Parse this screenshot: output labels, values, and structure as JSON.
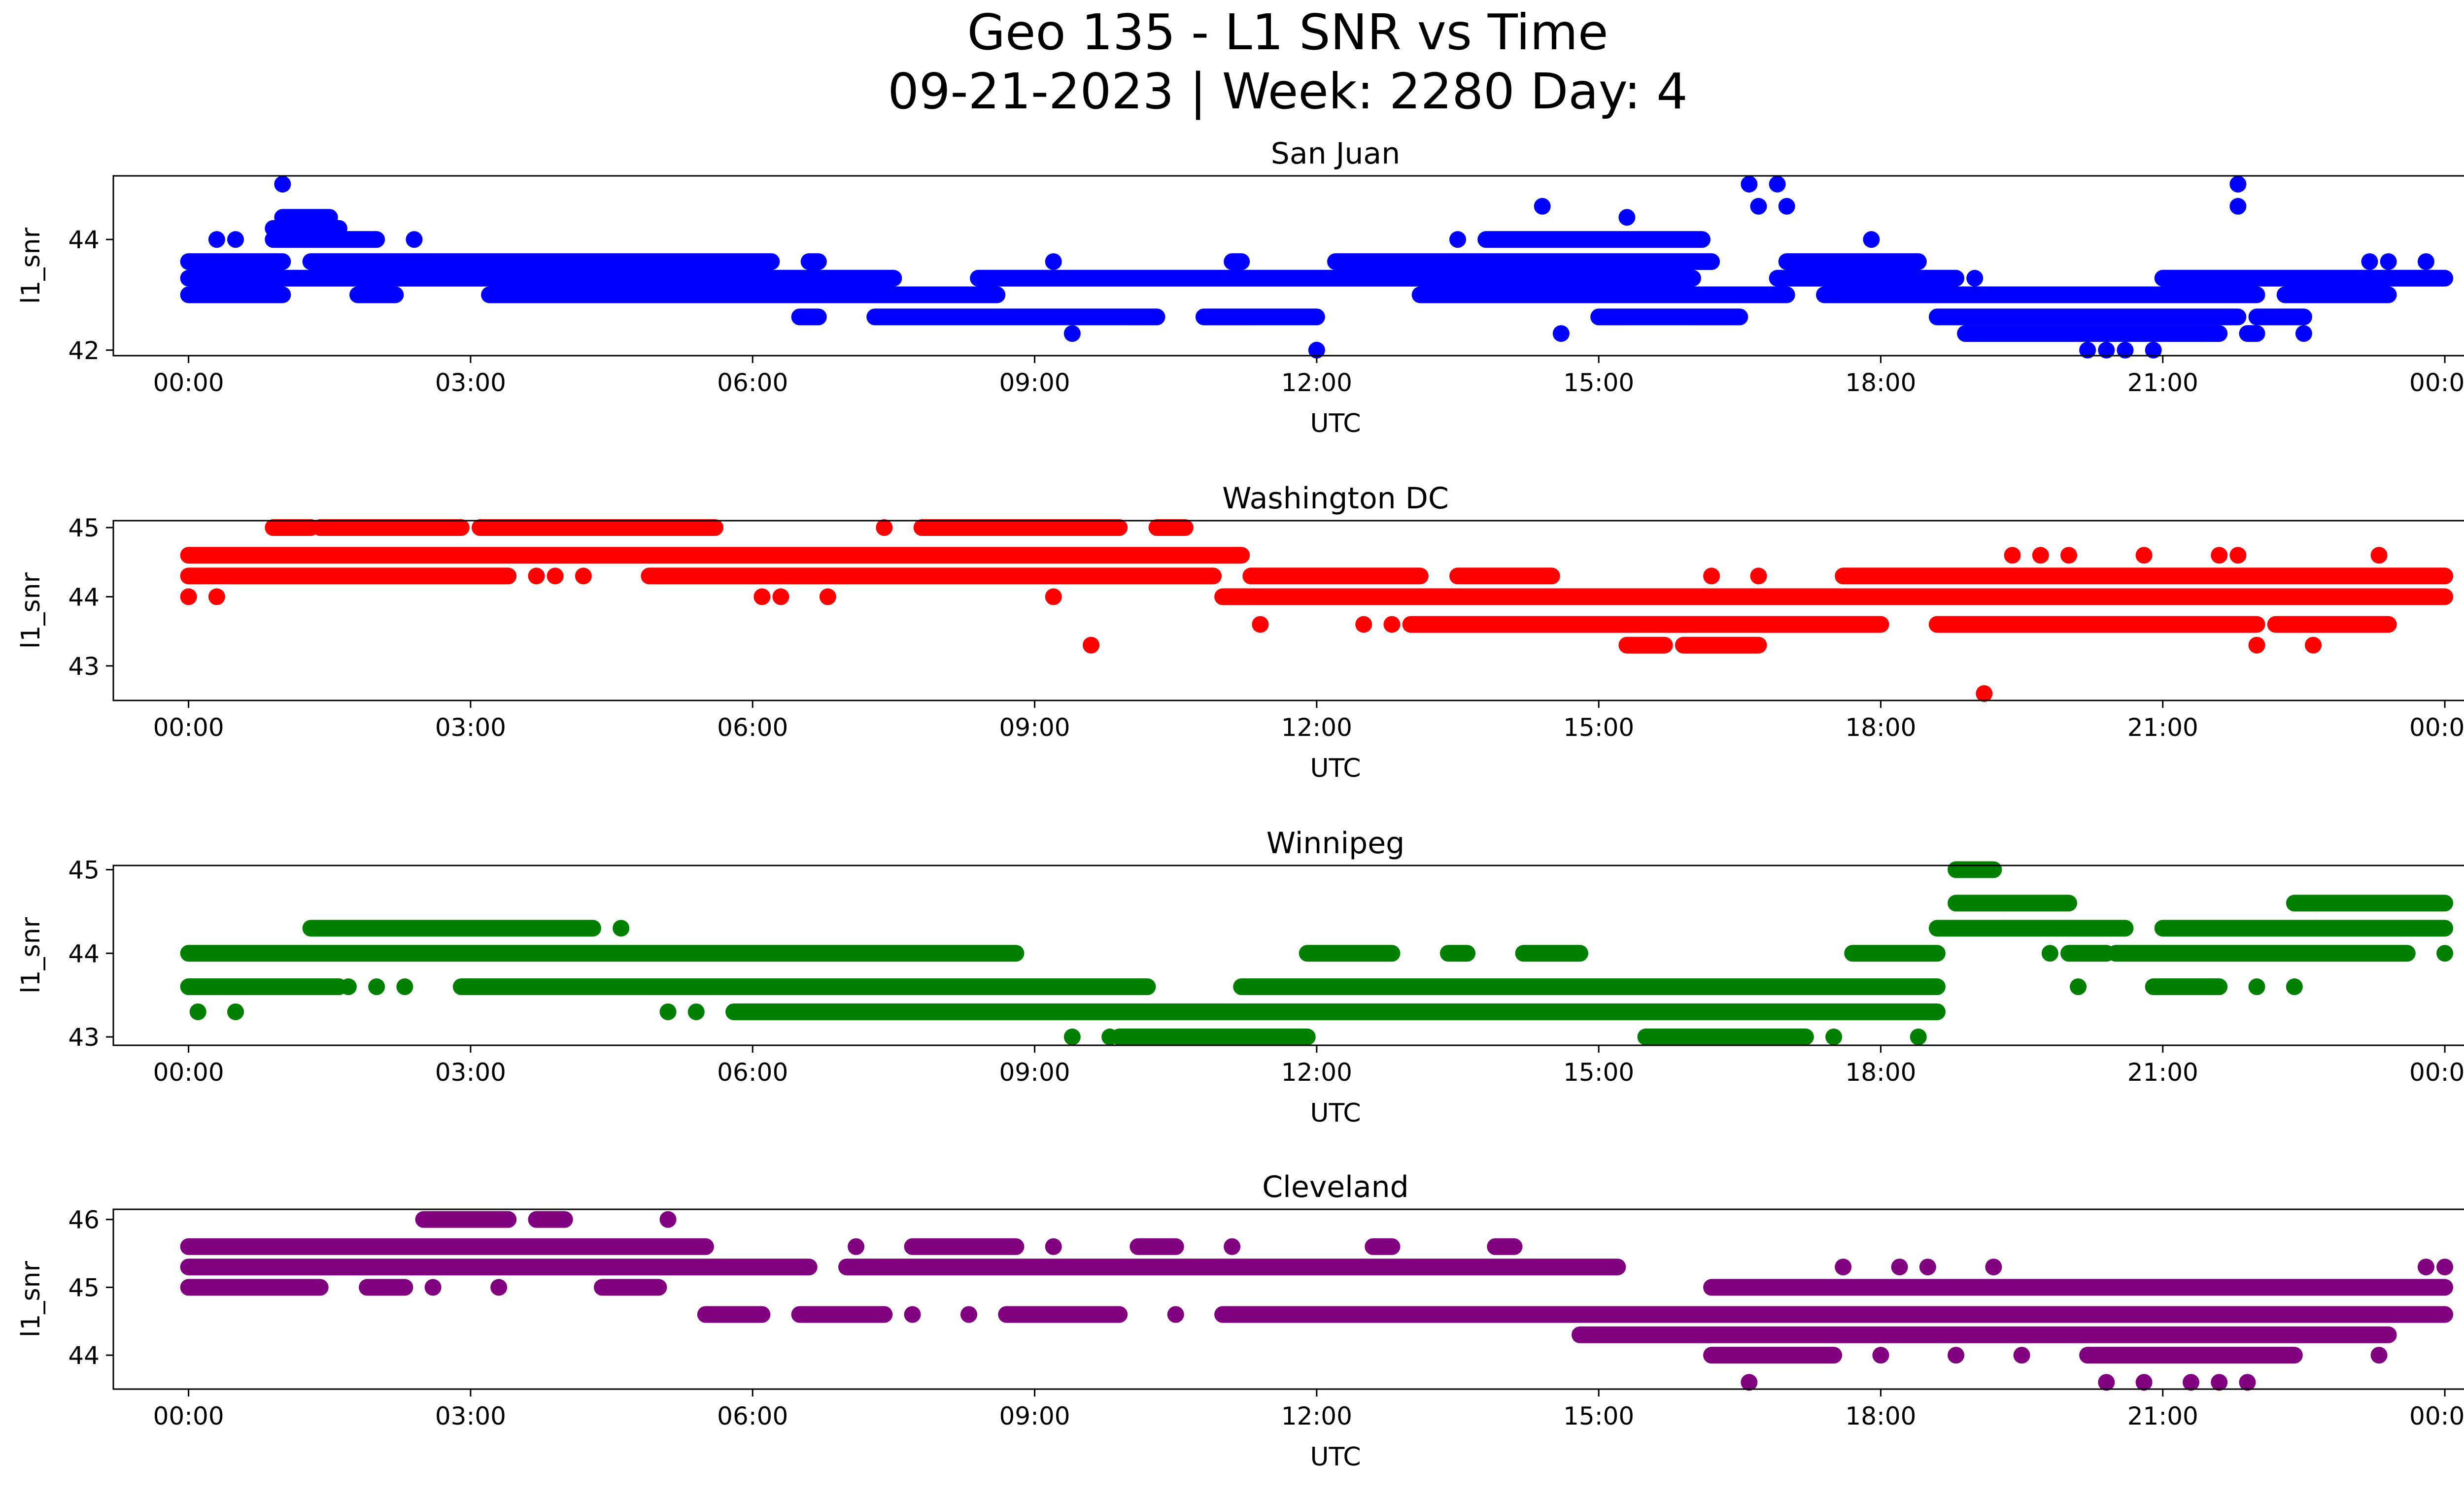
{
  "title_line1": "Geo 135 - L1 SNR vs Time",
  "title_line2": "09-21-2023 | Week: 2280 Day: 4",
  "chart_data": [
    {
      "type": "scatter",
      "title": "San Juan",
      "color": "#0000ff",
      "xlabel": "UTC",
      "ylabel": "l1_snr",
      "xlim": [
        -0.8,
        25.2
      ],
      "ylim": [
        41.9,
        45.15
      ],
      "xticks": [
        "00:00",
        "03:00",
        "06:00",
        "09:00",
        "12:00",
        "15:00",
        "18:00",
        "21:00",
        "00:00"
      ],
      "yticks": [
        42,
        44
      ],
      "bands": [
        {
          "y": 44.4,
          "segments": [
            [
              1.0,
              1.5
            ]
          ]
        },
        {
          "y": 44.2,
          "segments": [
            [
              0.9,
              1.6
            ]
          ]
        },
        {
          "y": 44.0,
          "segments": [
            [
              0.9,
              2.0
            ],
            [
              13.8,
              16.1
            ]
          ]
        },
        {
          "y": 43.6,
          "segments": [
            [
              0.0,
              1.0
            ],
            [
              1.3,
              6.2
            ],
            [
              6.6,
              6.7
            ],
            [
              9.2,
              9.2
            ],
            [
              11.1,
              11.2
            ],
            [
              12.2,
              16.2
            ],
            [
              17.0,
              18.4
            ]
          ]
        },
        {
          "y": 43.3,
          "segments": [
            [
              0.0,
              7.5
            ],
            [
              8.4,
              16.0
            ],
            [
              16.9,
              18.8
            ],
            [
              21.0,
              24.0
            ]
          ]
        },
        {
          "y": 43.0,
          "segments": [
            [
              0.0,
              1.0
            ],
            [
              1.8,
              2.2
            ],
            [
              3.2,
              8.6
            ],
            [
              13.1,
              17.0
            ],
            [
              17.4,
              22.0
            ],
            [
              22.3,
              23.4
            ]
          ]
        },
        {
          "y": 42.6,
          "segments": [
            [
              6.5,
              6.7
            ],
            [
              7.3,
              10.3
            ],
            [
              10.8,
              12.0
            ],
            [
              15.0,
              16.5
            ],
            [
              18.6,
              21.8
            ],
            [
              22.0,
              22.5
            ]
          ]
        },
        {
          "y": 42.3,
          "segments": [
            [
              18.9,
              21.6
            ],
            [
              21.9,
              22.0
            ]
          ]
        }
      ],
      "points": [
        {
          "x": 0.3,
          "y": 44.0
        },
        {
          "x": 0.5,
          "y": 44.0
        },
        {
          "x": 2.4,
          "y": 44.0
        },
        {
          "x": 1.0,
          "y": 45.0
        },
        {
          "x": 9.4,
          "y": 42.3
        },
        {
          "x": 12.0,
          "y": 42.0
        },
        {
          "x": 14.6,
          "y": 42.3
        },
        {
          "x": 13.5,
          "y": 44.0
        },
        {
          "x": 14.4,
          "y": 44.6
        },
        {
          "x": 15.3,
          "y": 44.4
        },
        {
          "x": 16.6,
          "y": 45.0
        },
        {
          "x": 16.9,
          "y": 45.0
        },
        {
          "x": 16.7,
          "y": 44.6
        },
        {
          "x": 17.0,
          "y": 44.6
        },
        {
          "x": 17.9,
          "y": 44.0
        },
        {
          "x": 20.2,
          "y": 42.0
        },
        {
          "x": 20.4,
          "y": 42.0
        },
        {
          "x": 20.6,
          "y": 42.0
        },
        {
          "x": 20.9,
          "y": 42.0
        },
        {
          "x": 21.8,
          "y": 45.0
        },
        {
          "x": 21.8,
          "y": 44.6
        },
        {
          "x": 23.2,
          "y": 43.6
        },
        {
          "x": 23.4,
          "y": 43.6
        },
        {
          "x": 23.8,
          "y": 43.6
        },
        {
          "x": 19.0,
          "y": 43.3
        },
        {
          "x": 21.4,
          "y": 42.3
        },
        {
          "x": 22.5,
          "y": 42.3
        }
      ]
    },
    {
      "type": "scatter",
      "title": "Washington DC",
      "color": "#ff0000",
      "xlabel": "UTC",
      "ylabel": "l1_snr",
      "xlim": [
        -0.8,
        25.2
      ],
      "ylim": [
        42.5,
        45.1
      ],
      "xticks": [
        "00:00",
        "03:00",
        "06:00",
        "09:00",
        "12:00",
        "15:00",
        "18:00",
        "21:00",
        "00:00"
      ],
      "yticks": [
        43,
        44,
        45
      ],
      "bands": [
        {
          "y": 45.0,
          "segments": [
            [
              0.9,
              1.3
            ],
            [
              1.4,
              2.9
            ],
            [
              3.1,
              5.6
            ],
            [
              7.8,
              9.9
            ],
            [
              10.3,
              10.6
            ]
          ]
        },
        {
          "y": 44.6,
          "segments": [
            [
              0.0,
              11.2
            ]
          ]
        },
        {
          "y": 44.3,
          "segments": [
            [
              0.0,
              3.4
            ],
            [
              4.9,
              10.9
            ],
            [
              11.3,
              13.1
            ],
            [
              13.5,
              14.5
            ],
            [
              17.6,
              24.0
            ]
          ]
        },
        {
          "y": 44.0,
          "segments": [
            [
              11.0,
              24.0
            ]
          ]
        },
        {
          "y": 43.6,
          "segments": [
            [
              13.0,
              18.0
            ],
            [
              18.6,
              22.0
            ],
            [
              22.2,
              23.4
            ]
          ]
        },
        {
          "y": 43.3,
          "segments": [
            [
              15.3,
              15.7
            ],
            [
              15.9,
              16.7
            ]
          ]
        }
      ],
      "points": [
        {
          "x": 0.0,
          "y": 44.0
        },
        {
          "x": 0.3,
          "y": 44.0
        },
        {
          "x": 6.1,
          "y": 44.0
        },
        {
          "x": 6.3,
          "y": 44.0
        },
        {
          "x": 6.8,
          "y": 44.0
        },
        {
          "x": 9.2,
          "y": 44.0
        },
        {
          "x": 7.4,
          "y": 45.0
        },
        {
          "x": 9.6,
          "y": 43.3
        },
        {
          "x": 11.4,
          "y": 43.6
        },
        {
          "x": 12.5,
          "y": 43.6
        },
        {
          "x": 12.8,
          "y": 43.6
        },
        {
          "x": 16.2,
          "y": 44.3
        },
        {
          "x": 16.7,
          "y": 44.3
        },
        {
          "x": 3.7,
          "y": 44.3
        },
        {
          "x": 3.9,
          "y": 44.3
        },
        {
          "x": 4.2,
          "y": 44.3
        },
        {
          "x": 19.1,
          "y": 42.6
        },
        {
          "x": 19.4,
          "y": 44.6
        },
        {
          "x": 19.7,
          "y": 44.6
        },
        {
          "x": 20.0,
          "y": 44.6
        },
        {
          "x": 20.8,
          "y": 44.6
        },
        {
          "x": 21.6,
          "y": 44.6
        },
        {
          "x": 21.8,
          "y": 44.6
        },
        {
          "x": 23.3,
          "y": 44.6
        },
        {
          "x": 22.0,
          "y": 43.3
        },
        {
          "x": 22.6,
          "y": 43.3
        },
        {
          "x": 18.6,
          "y": 43.6
        }
      ]
    },
    {
      "type": "scatter",
      "title": "Winnipeg",
      "color": "#008000",
      "xlabel": "UTC",
      "ylabel": "l1_snr",
      "xlim": [
        -0.8,
        25.2
      ],
      "ylim": [
        42.9,
        45.05
      ],
      "xticks": [
        "00:00",
        "03:00",
        "06:00",
        "09:00",
        "12:00",
        "15:00",
        "18:00",
        "21:00",
        "00:00"
      ],
      "yticks": [
        43,
        44,
        45
      ],
      "bands": [
        {
          "y": 45.0,
          "segments": [
            [
              18.8,
              19.2
            ]
          ]
        },
        {
          "y": 44.6,
          "segments": [
            [
              18.8,
              20.0
            ],
            [
              22.4,
              24.0
            ]
          ]
        },
        {
          "y": 44.3,
          "segments": [
            [
              1.3,
              4.3
            ],
            [
              18.6,
              20.6
            ],
            [
              21.0,
              24.0
            ]
          ]
        },
        {
          "y": 44.0,
          "segments": [
            [
              0.0,
              8.8
            ],
            [
              11.9,
              12.8
            ],
            [
              13.4,
              13.6
            ],
            [
              14.2,
              14.8
            ],
            [
              17.7,
              18.6
            ],
            [
              20.0,
              20.4
            ],
            [
              20.5,
              23.6
            ]
          ]
        },
        {
          "y": 43.6,
          "segments": [
            [
              0.0,
              1.6
            ],
            [
              2.9,
              10.2
            ],
            [
              11.2,
              18.6
            ],
            [
              20.9,
              21.6
            ]
          ]
        },
        {
          "y": 43.3,
          "segments": [
            [
              5.8,
              18.6
            ]
          ]
        },
        {
          "y": 43.0,
          "segments": [
            [
              9.9,
              11.9
            ],
            [
              15.5,
              17.2
            ]
          ]
        }
      ],
      "points": [
        {
          "x": 0.1,
          "y": 43.3
        },
        {
          "x": 0.5,
          "y": 43.3
        },
        {
          "x": 5.1,
          "y": 43.3
        },
        {
          "x": 5.4,
          "y": 43.3
        },
        {
          "x": 9.4,
          "y": 43.0
        },
        {
          "x": 9.8,
          "y": 43.0
        },
        {
          "x": 17.5,
          "y": 43.0
        },
        {
          "x": 18.4,
          "y": 43.0
        },
        {
          "x": 1.7,
          "y": 43.6
        },
        {
          "x": 2.0,
          "y": 43.6
        },
        {
          "x": 2.3,
          "y": 43.6
        },
        {
          "x": 4.6,
          "y": 44.3
        },
        {
          "x": 20.1,
          "y": 43.6
        },
        {
          "x": 22.0,
          "y": 43.6
        },
        {
          "x": 22.4,
          "y": 43.6
        },
        {
          "x": 19.8,
          "y": 44.0
        },
        {
          "x": 24.0,
          "y": 44.0
        }
      ]
    },
    {
      "type": "scatter",
      "title": "Cleveland",
      "color": "#800080",
      "xlabel": "UTC",
      "ylabel": "l1_snr",
      "xlim": [
        -0.8,
        25.2
      ],
      "ylim": [
        43.5,
        46.15
      ],
      "xticks": [
        "00:00",
        "03:00",
        "06:00",
        "09:00",
        "12:00",
        "15:00",
        "18:00",
        "21:00",
        "00:00"
      ],
      "yticks": [
        44,
        45,
        46
      ],
      "bands": [
        {
          "y": 46.0,
          "segments": [
            [
              2.5,
              3.4
            ],
            [
              3.7,
              4.0
            ]
          ]
        },
        {
          "y": 45.6,
          "segments": [
            [
              0.0,
              5.5
            ],
            [
              7.7,
              8.8
            ],
            [
              10.1,
              10.5
            ],
            [
              12.6,
              12.8
            ],
            [
              13.9,
              14.1
            ]
          ]
        },
        {
          "y": 45.3,
          "segments": [
            [
              0.0,
              6.6
            ],
            [
              7.0,
              15.2
            ]
          ]
        },
        {
          "y": 45.0,
          "segments": [
            [
              0.0,
              1.4
            ],
            [
              1.9,
              2.3
            ],
            [
              4.4,
              5.0
            ],
            [
              16.2,
              24.0
            ]
          ]
        },
        {
          "y": 44.6,
          "segments": [
            [
              5.5,
              6.1
            ],
            [
              6.5,
              7.4
            ],
            [
              8.7,
              9.9
            ],
            [
              11.0,
              24.0
            ]
          ]
        },
        {
          "y": 44.3,
          "segments": [
            [
              14.8,
              23.4
            ]
          ]
        },
        {
          "y": 44.0,
          "segments": [
            [
              16.2,
              17.5
            ],
            [
              20.2,
              22.4
            ]
          ]
        }
      ],
      "points": [
        {
          "x": 5.1,
          "y": 46.0
        },
        {
          "x": 3.3,
          "y": 45.0
        },
        {
          "x": 2.6,
          "y": 45.0
        },
        {
          "x": 7.1,
          "y": 45.6
        },
        {
          "x": 9.2,
          "y": 45.6
        },
        {
          "x": 11.1,
          "y": 45.6
        },
        {
          "x": 8.3,
          "y": 44.6
        },
        {
          "x": 7.7,
          "y": 44.6
        },
        {
          "x": 10.5,
          "y": 44.6
        },
        {
          "x": 16.6,
          "y": 43.6
        },
        {
          "x": 20.4,
          "y": 43.6
        },
        {
          "x": 20.8,
          "y": 43.6
        },
        {
          "x": 21.3,
          "y": 43.6
        },
        {
          "x": 21.6,
          "y": 43.6
        },
        {
          "x": 21.9,
          "y": 43.6
        },
        {
          "x": 18.2,
          "y": 45.3
        },
        {
          "x": 18.5,
          "y": 45.3
        },
        {
          "x": 19.2,
          "y": 45.3
        },
        {
          "x": 23.8,
          "y": 45.3
        },
        {
          "x": 24.0,
          "y": 45.3
        },
        {
          "x": 17.6,
          "y": 45.3
        },
        {
          "x": 18.0,
          "y": 44.0
        },
        {
          "x": 18.8,
          "y": 44.0
        },
        {
          "x": 19.5,
          "y": 44.0
        },
        {
          "x": 23.3,
          "y": 44.0
        }
      ]
    }
  ]
}
